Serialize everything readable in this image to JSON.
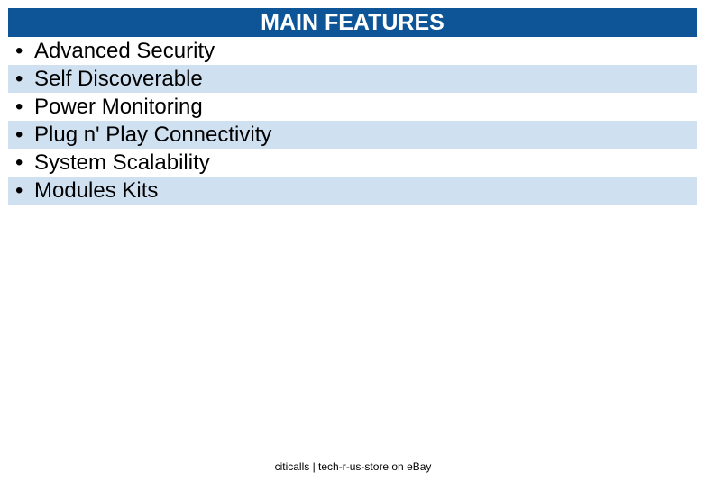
{
  "header": {
    "title": "MAIN FEATURES"
  },
  "features": [
    "Advanced Security",
    "Self Discoverable",
    "Power Monitoring",
    "Plug n' Play Connectivity",
    "System Scalability",
    "Modules Kits"
  ],
  "footer": {
    "text": "citicalls | tech-r-us-store on eBay"
  }
}
